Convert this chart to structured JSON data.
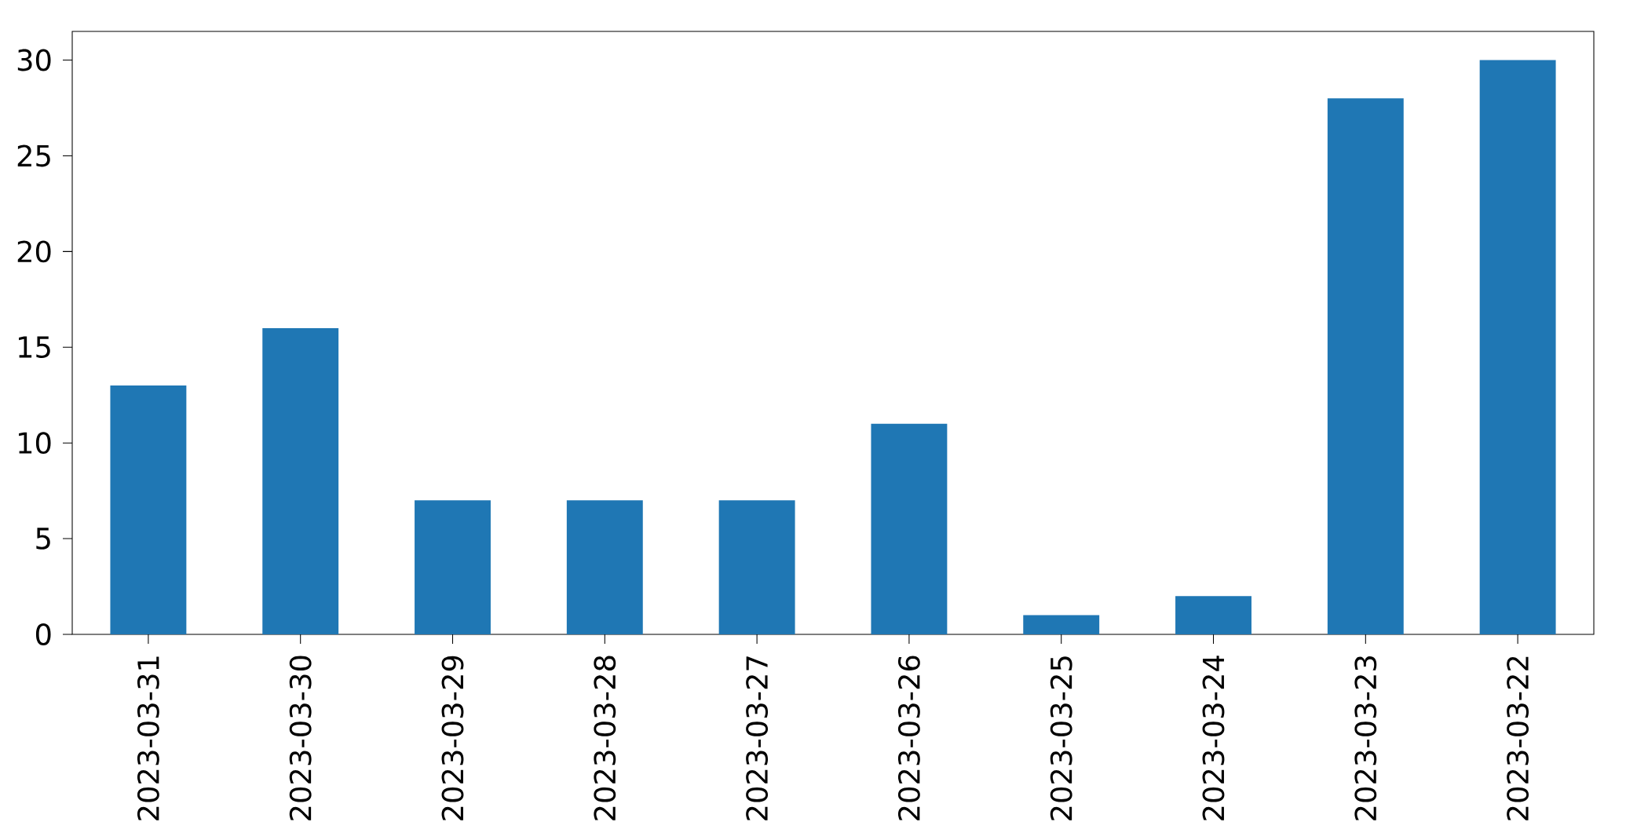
{
  "chart_data": {
    "type": "bar",
    "categories": [
      "2023-03-31",
      "2023-03-30",
      "2023-03-29",
      "2023-03-28",
      "2023-03-27",
      "2023-03-26",
      "2023-03-25",
      "2023-03-24",
      "2023-03-23",
      "2023-03-22"
    ],
    "values": [
      13,
      16,
      7,
      7,
      7,
      11,
      1,
      2,
      28,
      30
    ],
    "color": "#1f77b4",
    "ylim": [
      0,
      31.5
    ],
    "yticks": [
      0,
      5,
      10,
      15,
      20,
      25,
      30
    ]
  }
}
